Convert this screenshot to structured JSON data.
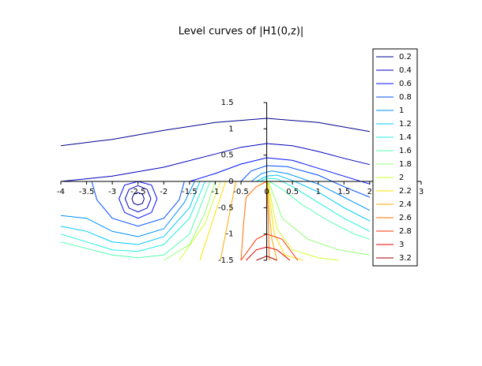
{
  "chart_data": {
    "type": "contour",
    "title": "Level curves of |H1(0,z)|",
    "xlim": [
      -4,
      3
    ],
    "ylim": [
      -1.5,
      1.5
    ],
    "xticks": [
      -4,
      -3.5,
      -3,
      -2.5,
      -2,
      -1.5,
      -1,
      -0.5,
      0,
      0.5,
      1,
      1.5,
      2,
      2.5,
      3
    ],
    "yticks": [
      -1.5,
      -1,
      -0.5,
      0,
      0.5,
      1,
      1.5
    ],
    "legend": "right",
    "series": [
      {
        "name": "0.2",
        "color": "#00008f",
        "curves": [
          {
            "x": [
              -4,
              -3,
              -2,
              -1,
              0,
              1,
              2
            ],
            "y": [
              0.68,
              0.8,
              0.97,
              1.12,
              1.2,
              1.12,
              0.95
            ]
          },
          {
            "x": [
              -2.38,
              -2.415,
              -2.5,
              -2.585,
              -2.62,
              -2.585,
              -2.5,
              -2.415,
              -2.38
            ],
            "y": [
              -0.33,
              -0.245,
              -0.21,
              -0.245,
              -0.33,
              -0.415,
              -0.45,
              -0.415,
              -0.33
            ]
          }
        ]
      },
      {
        "name": "0.4",
        "color": "#0000bf",
        "curves": [
          {
            "x": [
              -4,
              -3,
              -2,
              -1,
              -0.5,
              0,
              0.5,
              1,
              1.5,
              2
            ],
            "y": [
              0,
              0.1,
              0.27,
              0.52,
              0.65,
              0.72,
              0.68,
              0.57,
              0.44,
              0.32
            ]
          },
          {
            "x": [
              -2.25,
              -2.323,
              -2.5,
              -2.677,
              -2.75,
              -2.677,
              -2.5,
              -2.323,
              -2.25
            ],
            "y": [
              -0.33,
              -0.153,
              -0.08,
              -0.153,
              -0.33,
              -0.507,
              -0.58,
              -0.507,
              -0.33
            ]
          }
        ]
      },
      {
        "name": "0.6",
        "color": "#0010ff",
        "curves": [
          {
            "x": [
              -1.5,
              -1,
              -0.5,
              0,
              0.5,
              1,
              1.5,
              2
            ],
            "y": [
              0,
              0.15,
              0.33,
              0.45,
              0.4,
              0.25,
              0.1,
              -0.05
            ]
          },
          {
            "x": [
              -2.13,
              -2.238,
              -2.5,
              -2.762,
              -2.87,
              -2.762,
              -2.5,
              -2.238,
              -2.13
            ],
            "y": [
              -0.33,
              -0.07,
              0,
              -0.07,
              -0.33,
              -0.59,
              -0.7,
              -0.59,
              -0.33
            ]
          }
        ]
      },
      {
        "name": "0.8",
        "color": "#0050ff",
        "curves": [
          {
            "x": [
              -0.5,
              -0.3,
              0,
              0.4,
              1,
              1.5,
              2
            ],
            "y": [
              0,
              0.2,
              0.3,
              0.28,
              0.12,
              -0.1,
              -0.3
            ]
          },
          {
            "x": [
              -3.4,
              -3.3,
              -3,
              -2.5,
              -2,
              -1.7,
              -1.6
            ],
            "y": [
              0,
              -0.35,
              -0.7,
              -0.85,
              -0.7,
              -0.35,
              0
            ]
          }
        ]
      },
      {
        "name": "1",
        "color": "#0090ff",
        "curves": [
          {
            "x": [
              -0.3,
              -0.1,
              0.1,
              0.4,
              1,
              1.5,
              2
            ],
            "y": [
              0,
              0.15,
              0.2,
              0.15,
              -0.05,
              -0.3,
              -0.55
            ]
          },
          {
            "x": [
              -4,
              -3.5,
              -3,
              -2.5,
              -2,
              -1.6,
              -1.4
            ],
            "y": [
              -0.65,
              -0.7,
              -0.95,
              -1.05,
              -0.9,
              -0.4,
              0
            ]
          }
        ]
      },
      {
        "name": "1.2",
        "color": "#00c8ff",
        "curves": [
          {
            "x": [
              -0.2,
              0,
              0.2,
              0.5,
              1,
              1.5,
              2
            ],
            "y": [
              0,
              0.1,
              0.12,
              0.02,
              -0.2,
              -0.5,
              -0.75
            ]
          },
          {
            "x": [
              -4,
              -3.5,
              -3,
              -2.5,
              -2,
              -1.5,
              -1.3
            ],
            "y": [
              -0.85,
              -0.95,
              -1.15,
              -1.2,
              -1.05,
              -0.5,
              0
            ]
          }
        ]
      },
      {
        "name": "1.4",
        "color": "#20f0e0",
        "curves": [
          {
            "x": [
              -0.12,
              0,
              0.2,
              0.5,
              1,
              1.5,
              2
            ],
            "y": [
              0,
              0.06,
              0.05,
              -0.1,
              -0.4,
              -0.7,
              -0.95
            ]
          },
          {
            "x": [
              -4,
              -3,
              -2.5,
              -2,
              -1.5,
              -1.2
            ],
            "y": [
              -1,
              -1.3,
              -1.33,
              -1.2,
              -0.7,
              0
            ]
          }
        ]
      },
      {
        "name": "1.6",
        "color": "#50ffb0",
        "curves": [
          {
            "x": [
              0.05,
              0.3,
              0.7,
              1.2,
              1.7,
              2
            ],
            "y": [
              0,
              -0.15,
              -0.45,
              -0.75,
              -1,
              -1.1
            ]
          },
          {
            "x": [
              -4,
              -3,
              -2.5,
              -2,
              -1.5,
              -1.1
            ],
            "y": [
              -1.15,
              -1.4,
              -1.45,
              -1.4,
              -1,
              0
            ]
          }
        ]
      },
      {
        "name": "1.8",
        "color": "#90ff70",
        "curves": [
          {
            "x": [
              0.03,
              0.15,
              0.3,
              0.8,
              1.4,
              2
            ],
            "y": [
              0,
              -0.3,
              -0.7,
              -1.1,
              -1.3,
              -1.4
            ]
          },
          {
            "x": [
              -2,
              -1.5,
              -1.2,
              -1
            ],
            "y": [
              -1.5,
              -1.2,
              -0.6,
              0
            ]
          }
        ]
      },
      {
        "name": "2",
        "color": "#d0ff30",
        "curves": [
          {
            "x": [
              0.02,
              0.1,
              0.2,
              0.5,
              1,
              1.4
            ],
            "y": [
              0,
              -0.4,
              -0.9,
              -1.3,
              -1.45,
              -1.5
            ]
          },
          {
            "x": [
              -1.7,
              -1.2,
              -0.9
            ],
            "y": [
              -1.5,
              -0.8,
              0
            ]
          }
        ]
      },
      {
        "name": "2.2",
        "color": "#ffe000",
        "curves": [
          {
            "x": [
              0.02,
              0.08,
              0.15,
              0.35,
              0.7
            ],
            "y": [
              0,
              -0.5,
              -1,
              -1.4,
              -1.5
            ]
          },
          {
            "x": [
              -1.3,
              -1,
              -0.8
            ],
            "y": [
              -1.5,
              -0.6,
              0
            ]
          }
        ]
      },
      {
        "name": "2.4",
        "color": "#ffa800",
        "curves": [
          {
            "x": [
              0.01,
              0.05,
              0.1,
              0.2
            ],
            "y": [
              0,
              -0.6,
              -1.1,
              -1.5
            ]
          },
          {
            "x": [
              -0.9,
              -0.7,
              -0.6
            ],
            "y": [
              -1.5,
              -0.5,
              0
            ]
          }
        ]
      },
      {
        "name": "2.6",
        "color": "#ff7000",
        "curves": [
          {
            "x": [
              -0.5,
              -0.45,
              -0.4,
              -0.2,
              0
            ],
            "y": [
              -1.5,
              -0.8,
              -0.3,
              -0.1,
              0
            ]
          },
          {
            "x": [
              0,
              0.03,
              0.05
            ],
            "y": [
              0,
              -0.7,
              -1.5
            ]
          }
        ]
      },
      {
        "name": "2.8",
        "color": "#ff3000",
        "curves": [
          {
            "x": [
              -0.5,
              -0.2,
              0,
              0.3,
              0.6
            ],
            "y": [
              -1.5,
              -1.1,
              -1,
              -1.1,
              -1.5
            ]
          }
        ]
      },
      {
        "name": "3",
        "color": "#e00000",
        "curves": [
          {
            "x": [
              -0.4,
              -0.2,
              0,
              0.2,
              0.45
            ],
            "y": [
              -1.5,
              -1.3,
              -1.25,
              -1.3,
              -1.5
            ]
          }
        ]
      },
      {
        "name": "3.2",
        "color": "#a00000",
        "curves": [
          {
            "x": [
              -0.2,
              0,
              0.2
            ],
            "y": [
              -1.5,
              -1.42,
              -1.5
            ]
          },
          {
            "x": [
              -0.3,
              0
            ],
            "y": [
              0,
              0
            ]
          }
        ]
      }
    ]
  }
}
